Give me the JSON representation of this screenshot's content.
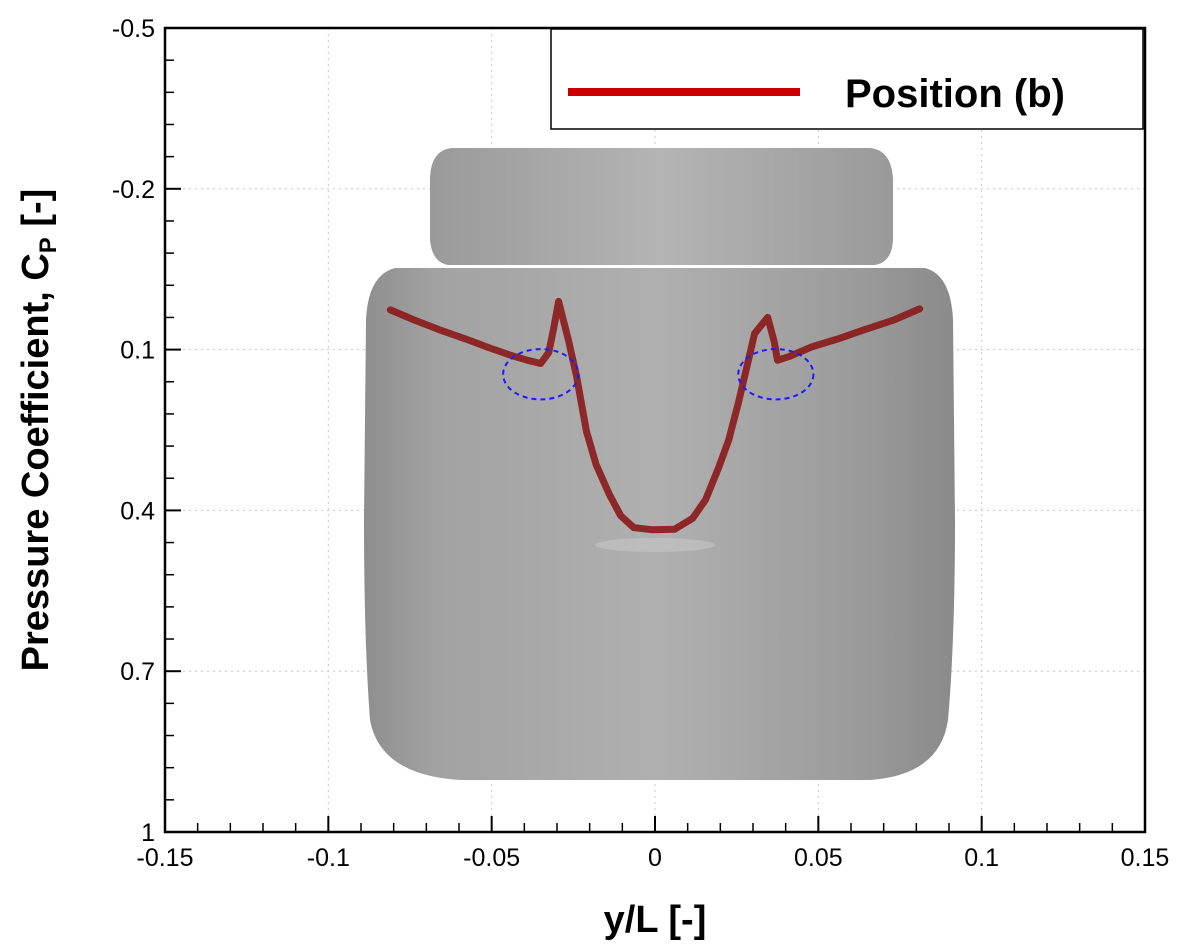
{
  "chart_data": {
    "type": "line",
    "title": "",
    "xlabel": "y/L [-]",
    "ylabel": "Pressure Coefficient, C",
    "ylabel_subscript": "P",
    "ylabel_suffix": " [-]",
    "xlim": [
      -0.15,
      0.15
    ],
    "ylim": [
      -0.5,
      1
    ],
    "y_inverted": true,
    "x_ticks": [
      "-0.15",
      "-0.1",
      "-0.05",
      "0",
      "0.05",
      "0.1",
      "0.15"
    ],
    "y_ticks": [
      "-0.5",
      "-0.2",
      "0.1",
      "0.4",
      "0.7",
      "1"
    ],
    "grid": true,
    "legend_position": "top-right",
    "background": "ship hull body-plan silhouette (gray)",
    "colors": {
      "series": "#8b1a1a",
      "legend_line": "#cc0000",
      "highlight_circle": "#1a1aff",
      "hull": "#a6a6a6"
    },
    "series": [
      {
        "name": "Position (b)",
        "x": [
          -0.081,
          -0.074,
          -0.066,
          -0.058,
          -0.051,
          -0.044,
          -0.039,
          -0.035,
          -0.0325,
          -0.031,
          -0.0295,
          -0.0265,
          -0.024,
          -0.0225,
          -0.021,
          -0.018,
          -0.014,
          -0.0105,
          -0.0065,
          -0.001,
          0.006,
          0.0115,
          0.0155,
          0.0195,
          0.0225,
          0.0255,
          0.028,
          0.0305,
          0.0345,
          0.0365,
          0.0375,
          0.041,
          0.048,
          0.056,
          0.064,
          0.073,
          0.081
        ],
        "y": [
          0.026,
          0.044,
          0.063,
          0.08,
          0.096,
          0.111,
          0.12,
          0.126,
          0.105,
          0.06,
          0.01,
          0.082,
          0.15,
          0.201,
          0.252,
          0.315,
          0.37,
          0.41,
          0.432,
          0.436,
          0.435,
          0.415,
          0.38,
          0.32,
          0.27,
          0.2,
          0.135,
          0.07,
          0.04,
          0.085,
          0.12,
          0.113,
          0.095,
          0.08,
          0.063,
          0.045,
          0.024
        ]
      }
    ],
    "highlight_circles": [
      {
        "x": -0.035,
        "y": 0.146,
        "rx": 0.0115,
        "ry": 0.047
      },
      {
        "x": 0.037,
        "y": 0.146,
        "rx": 0.0115,
        "ry": 0.047
      }
    ]
  },
  "legend": {
    "label": "Position (b)"
  }
}
